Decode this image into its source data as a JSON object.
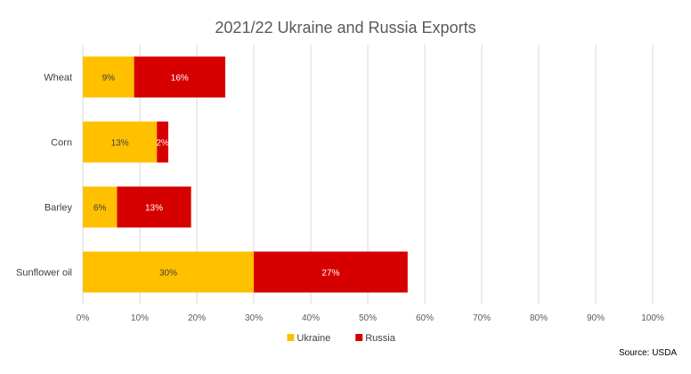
{
  "chart_data": {
    "type": "bar",
    "orientation": "horizontal",
    "stacked": true,
    "title": "2021/22 Ukraine and Russia Exports",
    "categories": [
      "Wheat",
      "Corn",
      "Barley",
      "Sunflower oil"
    ],
    "series": [
      {
        "name": "Ukraine",
        "values": [
          9,
          13,
          6,
          30
        ],
        "labels": [
          "9%",
          "13%",
          "6%",
          "30%"
        ],
        "color": "#FFC000",
        "label_color": "#404040"
      },
      {
        "name": "Russia",
        "values": [
          16,
          2,
          13,
          27
        ],
        "labels": [
          "16%",
          "2%",
          "13%",
          "27%"
        ],
        "color": "#D70000",
        "label_color": "#FFFFFF"
      }
    ],
    "xlim": [
      0,
      100
    ],
    "x_ticks": [
      0,
      10,
      20,
      30,
      40,
      50,
      60,
      70,
      80,
      90,
      100
    ],
    "x_tick_labels": [
      "0%",
      "10%",
      "20%",
      "30%",
      "40%",
      "50%",
      "60%",
      "70%",
      "80%",
      "90%",
      "100%"
    ],
    "grid": "vertical",
    "legend_position": "bottom",
    "gridline_color": "#D9D9D9"
  },
  "source": "Source: USDA"
}
